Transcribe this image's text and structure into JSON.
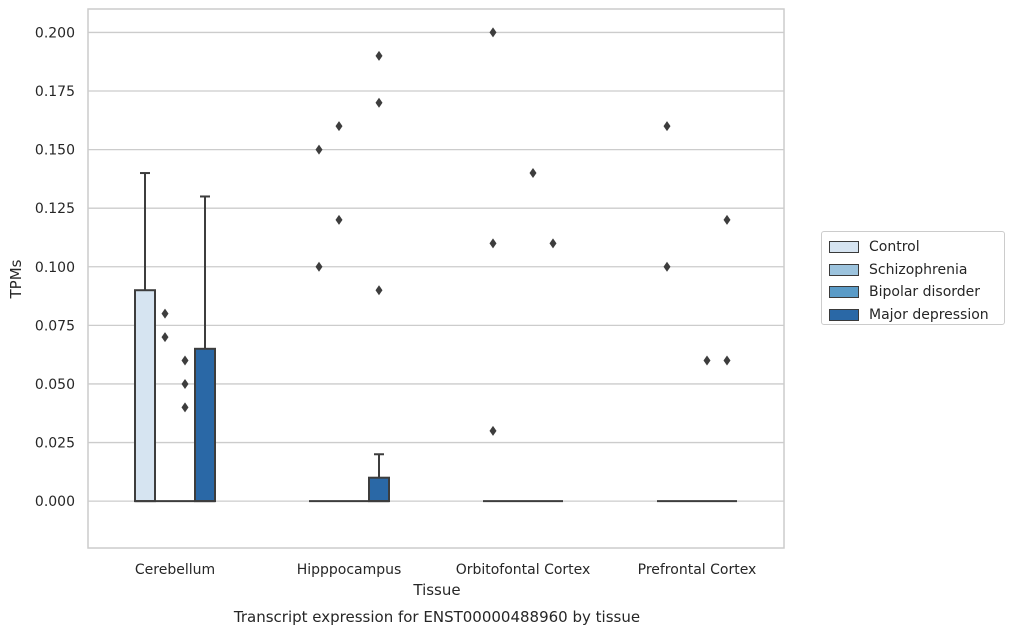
{
  "chart_data": {
    "type": "box",
    "title": "Transcript expression for ENST00000488960 by tissue",
    "xlabel": "Tissue",
    "ylabel": "TPMs",
    "ylim": [
      -0.02,
      0.21
    ],
    "yticks": [
      "0.000",
      "0.025",
      "0.050",
      "0.075",
      "0.100",
      "0.125",
      "0.150",
      "0.175",
      "0.200"
    ],
    "ytick_values": [
      0,
      0.025,
      0.05,
      0.075,
      0.1,
      0.125,
      0.15,
      0.175,
      0.2
    ],
    "grid": "horizontal",
    "legend_position": "right",
    "categories": [
      "Cerebellum",
      "Hipppocampus",
      "Orbitofontal Cortex",
      "Prefrontal Cortex"
    ],
    "series": [
      {
        "name": "Control",
        "color": "#d6e4f1",
        "boxes": [
          {
            "q1": 0,
            "median": 0,
            "q3": 0.09,
            "whisker_low": 0,
            "whisker_high": 0.14,
            "outliers": []
          },
          {
            "q1": 0,
            "median": 0,
            "q3": 0,
            "whisker_low": 0,
            "whisker_high": 0,
            "outliers": [
              0.1,
              0.15
            ]
          },
          {
            "q1": 0,
            "median": 0,
            "q3": 0,
            "whisker_low": 0,
            "whisker_high": 0,
            "outliers": [
              0.03,
              0.11,
              0.2
            ]
          },
          {
            "q1": 0,
            "median": 0,
            "q3": 0,
            "whisker_low": 0,
            "whisker_high": 0,
            "outliers": [
              0.1,
              0.16
            ]
          }
        ]
      },
      {
        "name": "Schizophrenia",
        "color": "#9cc3dd",
        "boxes": [
          {
            "q1": 0,
            "median": 0,
            "q3": 0,
            "whisker_low": 0,
            "whisker_high": 0,
            "outliers": [
              0.07,
              0.08
            ]
          },
          {
            "q1": 0,
            "median": 0,
            "q3": 0,
            "whisker_low": 0,
            "whisker_high": 0,
            "outliers": [
              0.12,
              0.16
            ]
          },
          {
            "q1": 0,
            "median": 0,
            "q3": 0,
            "whisker_low": 0,
            "whisker_high": 0,
            "outliers": []
          },
          {
            "q1": 0,
            "median": 0,
            "q3": 0,
            "whisker_low": 0,
            "whisker_high": 0,
            "outliers": []
          }
        ]
      },
      {
        "name": "Bipolar disorder",
        "color": "#5a9bc7",
        "boxes": [
          {
            "q1": 0,
            "median": 0,
            "q3": 0,
            "whisker_low": 0,
            "whisker_high": 0,
            "outliers": [
              0.04,
              0.05,
              0.06
            ]
          },
          {
            "q1": 0,
            "median": 0,
            "q3": 0,
            "whisker_low": 0,
            "whisker_high": 0,
            "outliers": []
          },
          {
            "q1": 0,
            "median": 0,
            "q3": 0,
            "whisker_low": 0,
            "whisker_high": 0,
            "outliers": [
              0.14
            ]
          },
          {
            "q1": 0,
            "median": 0,
            "q3": 0,
            "whisker_low": 0,
            "whisker_high": 0,
            "outliers": [
              0.06
            ]
          }
        ]
      },
      {
        "name": "Major depression",
        "color": "#2a68a6",
        "boxes": [
          {
            "q1": 0,
            "median": 0,
            "q3": 0.065,
            "whisker_low": 0,
            "whisker_high": 0.13,
            "outliers": []
          },
          {
            "q1": 0,
            "median": 0,
            "q3": 0.01,
            "whisker_low": 0,
            "whisker_high": 0.02,
            "outliers": [
              0.09,
              0.17,
              0.19
            ]
          },
          {
            "q1": 0,
            "median": 0,
            "q3": 0,
            "whisker_low": 0,
            "whisker_high": 0,
            "outliers": [
              0.11
            ]
          },
          {
            "q1": 0,
            "median": 0,
            "q3": 0,
            "whisker_low": 0,
            "whisker_high": 0,
            "outliers": [
              0.06,
              0.12
            ]
          }
        ]
      }
    ]
  }
}
